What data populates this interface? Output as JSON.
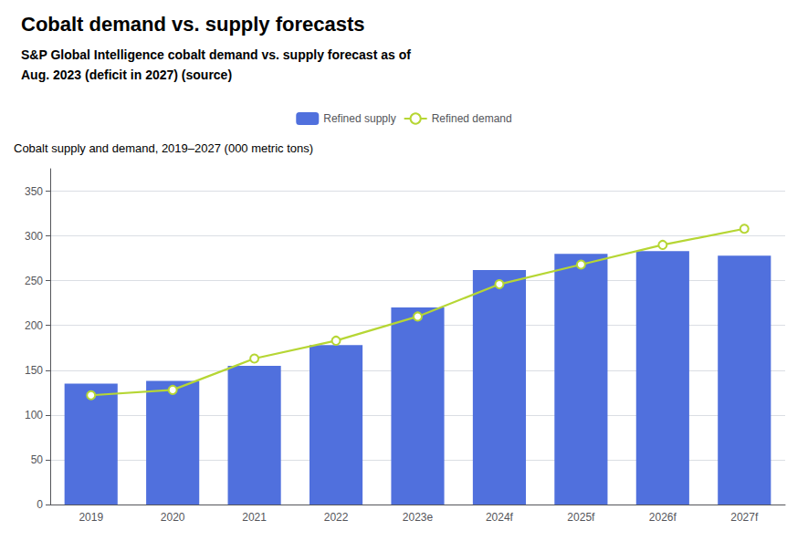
{
  "chart_data": {
    "type": "bar",
    "title": "Cobalt demand vs. supply forecasts",
    "subtitle": [
      "S&P Global Intelligence cobalt demand vs. supply forecast as of",
      "Aug. 2023 (deficit in 2027) (source)"
    ],
    "ylabel": "Cobalt supply and demand, 2019–2027 (000 metric tons)",
    "categories": [
      "2019",
      "2020",
      "2021",
      "2022",
      "2023e",
      "2024f",
      "2025f",
      "2026f",
      "2027f"
    ],
    "series": [
      {
        "name": "Refined supply",
        "type": "bar",
        "values": [
          135,
          138,
          155,
          178,
          220,
          262,
          280,
          283,
          278
        ]
      },
      {
        "name": "Refined demand",
        "type": "line",
        "marker": "circle",
        "values": [
          122,
          128,
          163,
          183,
          210,
          246,
          268,
          290,
          308
        ]
      }
    ],
    "ylim": [
      0,
      375
    ],
    "yticks": [
      0,
      50,
      100,
      150,
      200,
      250,
      300,
      350
    ],
    "grid": true,
    "legend": "top"
  }
}
